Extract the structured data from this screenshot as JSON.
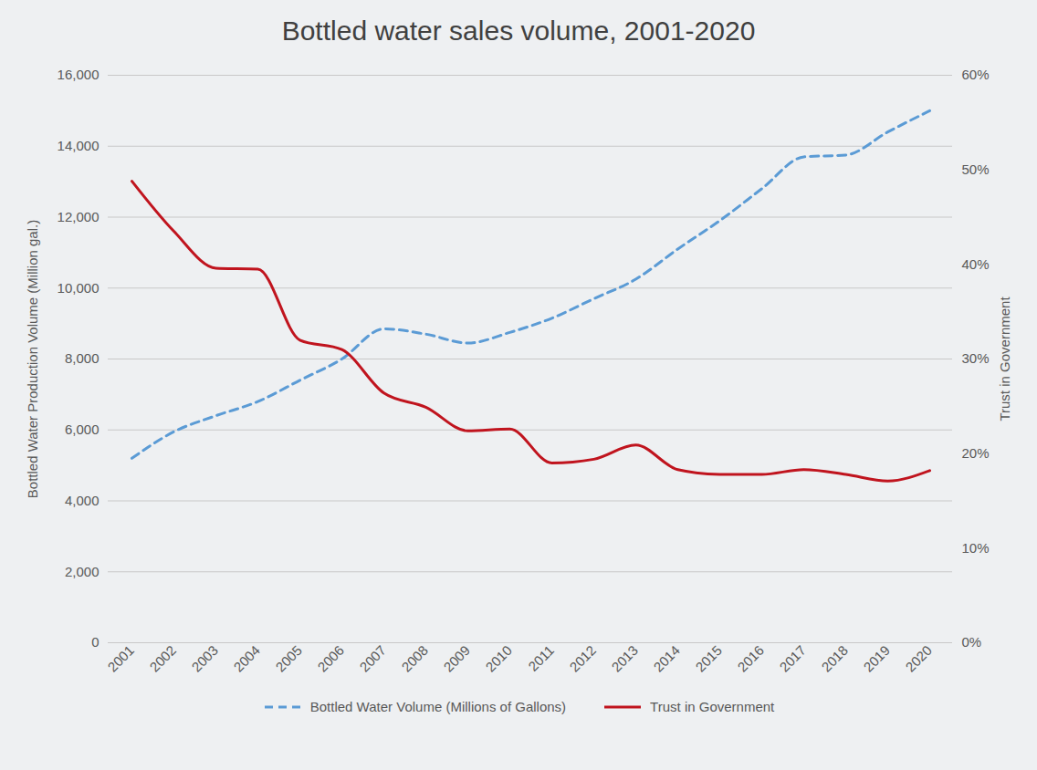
{
  "chart_data": {
    "type": "line",
    "title": "Bottled water sales volume, 2001-2020",
    "x": [
      "2001",
      "2002",
      "2003",
      "2004",
      "2005",
      "2006",
      "2007",
      "2008",
      "2009",
      "2010",
      "2011",
      "2012",
      "2013",
      "2014",
      "2015",
      "2016",
      "2017",
      "2018",
      "2019",
      "2020"
    ],
    "y_label": "Bottled Water Production Volume (Million gal.)",
    "y2_label": "Trust in Government",
    "ylim": [
      0,
      16000
    ],
    "yticks": [
      0,
      {
        "value": 2000,
        "label": "2,000"
      },
      {
        "value": 4000,
        "label": "4,000"
      },
      {
        "value": 6000,
        "label": "6,000"
      },
      {
        "value": 8000,
        "label": "8,000"
      },
      {
        "value": 10000,
        "label": "10,000"
      },
      {
        "value": 12000,
        "label": "12,000"
      },
      {
        "value": 14000,
        "label": "14,000"
      },
      {
        "value": 16000,
        "label": "16,000"
      }
    ],
    "y2lim": [
      0,
      60
    ],
    "y2ticks": [
      {
        "value": 0,
        "label": "0%"
      },
      {
        "value": 10,
        "label": "10%"
      },
      {
        "value": 20,
        "label": "20%"
      },
      {
        "value": 30,
        "label": "30%"
      },
      {
        "value": 40,
        "label": "40%"
      },
      {
        "value": 50,
        "label": "50%"
      },
      {
        "value": 60,
        "label": "60%"
      }
    ],
    "grid": true,
    "legend": "bottom",
    "series": [
      {
        "name": "Bottled Water Volume (Millions of Gallons)",
        "color": "#5b9bd5",
        "line_style": "dashed",
        "values": [
          5200,
          5950,
          6400,
          6800,
          7400,
          8000,
          8850,
          8700,
          8450,
          8750,
          9150,
          9700,
          10250,
          11100,
          11900,
          12800,
          13700,
          13750,
          14400,
          15000
        ]
      },
      {
        "name": "Trust in Government",
        "color": "#c0141e",
        "line_style": "solid",
        "axis": "y2",
        "values": [
          48.8,
          43.5,
          39.6,
          39.5,
          32,
          31,
          26.4,
          24.9,
          22.4,
          22.6,
          19,
          19.4,
          20.9,
          18.3,
          17.8,
          17.8,
          18.3,
          17.8,
          17.1,
          18.2
        ]
      }
    ]
  }
}
